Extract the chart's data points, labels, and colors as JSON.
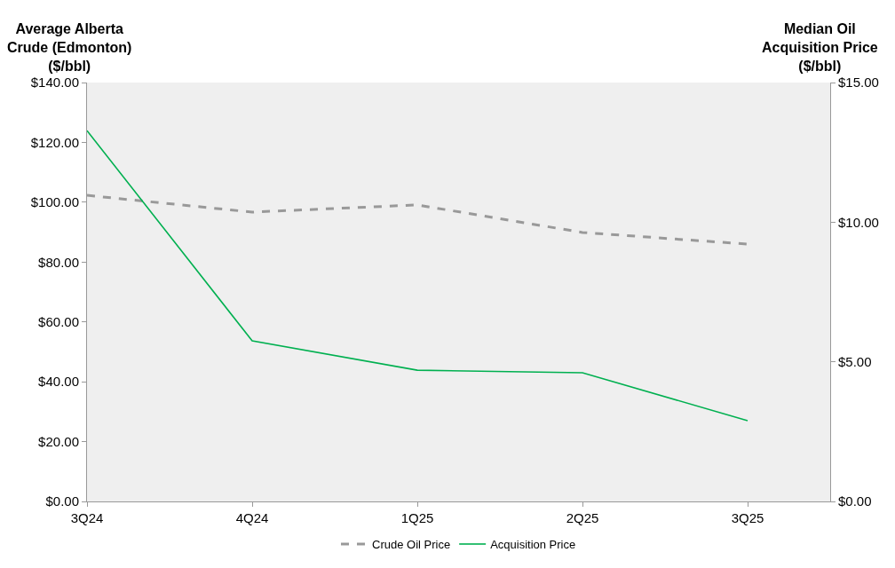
{
  "chart_data": {
    "type": "line",
    "ylabel": "Average Alberta\nCrude (Edmonton)\n($/bbl)",
    "y2label": "Median Oil\nAcquisition Price\n($/bbl)",
    "categories": [
      "3Q24",
      "4Q24",
      "1Q25",
      "2Q25",
      "3Q25"
    ],
    "series": [
      {
        "name": "Crude Oil Price",
        "color": "#999999",
        "line_style": "dashed",
        "values": [
          102.3,
          96.7,
          99.1,
          89.9,
          86.0
        ]
      },
      {
        "name": "Acquisition Price",
        "color": "#00b050",
        "line_style": "solid",
        "axis": "y2",
        "values": [
          13.28,
          5.75,
          4.7,
          4.61,
          2.89
        ]
      }
    ],
    "ylim": [
      0,
      140
    ],
    "yticks": [
      {
        "value": 0,
        "label": "$0.00"
      },
      {
        "value": 20,
        "label": "$20.00"
      },
      {
        "value": 40,
        "label": "$40.00"
      },
      {
        "value": 60,
        "label": "$60.00"
      },
      {
        "value": 80,
        "label": "$80.00"
      },
      {
        "value": 100,
        "label": "$100.00"
      },
      {
        "value": 120,
        "label": "$120.00"
      },
      {
        "value": 140,
        "label": "$140.00"
      }
    ],
    "y2lim": [
      0,
      15
    ],
    "y2ticks": [
      {
        "value": 0,
        "label": "$0.00"
      },
      {
        "value": 5,
        "label": "$5.00"
      },
      {
        "value": 10,
        "label": "$10.00"
      },
      {
        "value": 15,
        "label": "$15.00"
      }
    ],
    "grid": false,
    "legend": "bottom",
    "marker": "none"
  }
}
